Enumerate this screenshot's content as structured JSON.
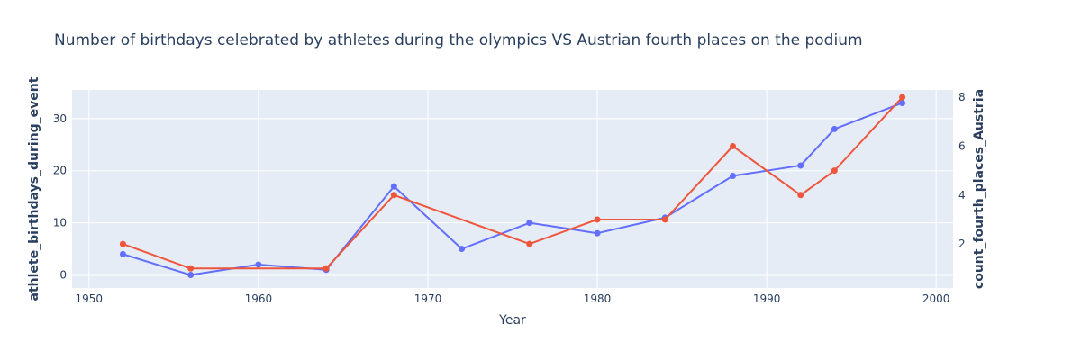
{
  "colors": {
    "plot_bg": "#e5ecf6",
    "grid": "#ffffff",
    "text": "#2a3f5f",
    "series_left": "#636efa",
    "series_right": "#ef553b"
  },
  "chart_data": {
    "type": "line",
    "title": "Number of birthdays celebrated by athletes during the olympics VS Austrian fourth places on the podium",
    "xlabel": "Year",
    "ylabel": "athlete_birthdays_during_event",
    "y2label": "count_fourth_places_Austria",
    "xlim": [
      1949,
      2001
    ],
    "ylim": [
      -2.5,
      35.5
    ],
    "y2lim": [
      0.2,
      8.3
    ],
    "x_ticks": [
      1950,
      1960,
      1970,
      1980,
      1990,
      2000
    ],
    "y_ticks": [
      0,
      10,
      20,
      30
    ],
    "y2_ticks": [
      2,
      4,
      6,
      8
    ],
    "grid": true,
    "legend": "none",
    "series": [
      {
        "axis": "left",
        "color": "#636efa",
        "x": [
          1952,
          1956,
          1960,
          1964,
          1968,
          1972,
          1976,
          1980,
          1984,
          1988,
          1992,
          1994,
          1998
        ],
        "y": [
          4,
          0,
          2,
          1,
          17,
          5,
          10,
          8,
          11,
          19,
          21,
          28,
          33
        ]
      },
      {
        "axis": "right",
        "color": "#ef553b",
        "x": [
          1952,
          1956,
          1964,
          1968,
          1976,
          1980,
          1984,
          1988,
          1992,
          1994,
          1998
        ],
        "y": [
          2,
          1,
          1,
          4,
          2,
          3,
          3,
          6,
          4,
          5,
          8
        ]
      }
    ]
  }
}
